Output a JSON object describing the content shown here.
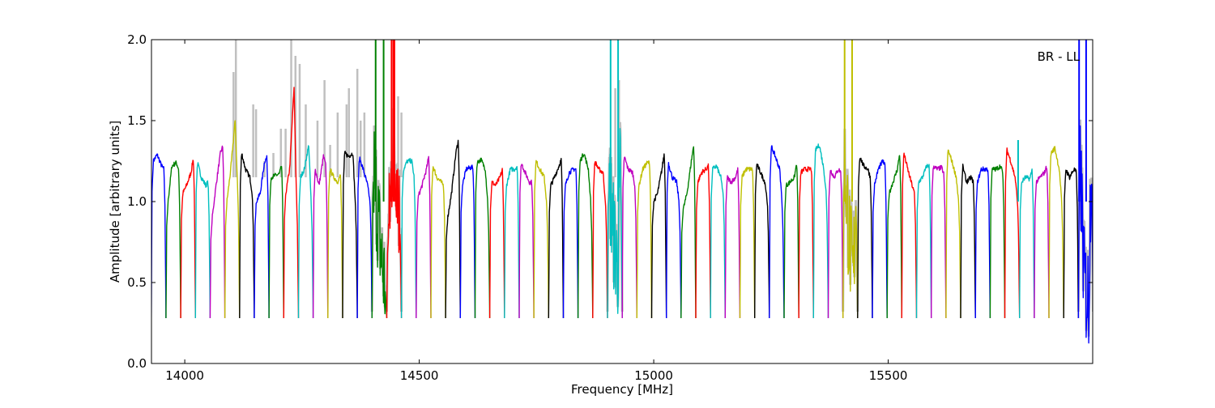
{
  "chart_data": {
    "type": "line",
    "title": "",
    "annotation": "BR - LL",
    "xlabel": "Frequency [MHz]",
    "ylabel": "Amplitude [arbitrary units]",
    "xlim": [
      13929,
      15936
    ],
    "ylim": [
      0.0,
      2.0
    ],
    "xticks": [
      14000,
      14500,
      15000,
      15500
    ],
    "xtick_labels": [
      "14000",
      "14500",
      "15000",
      "15500"
    ],
    "yticks": [
      0.0,
      0.5,
      1.0,
      1.5,
      2.0
    ],
    "ytick_labels": [
      "0.0",
      "0.5",
      "1.0",
      "1.5",
      "2.0"
    ],
    "grid": false,
    "colors": {
      "b": "#0000ff",
      "g": "#008000",
      "r": "#ff0000",
      "c": "#00bfbf",
      "m": "#bf00bf",
      "y": "#bfbf00",
      "k": "#000000",
      "grey": "#c0c0c0"
    },
    "color_cycle": [
      "b",
      "g",
      "r",
      "c",
      "m",
      "y",
      "k"
    ],
    "channel_first_start_mhz": 13928.6,
    "channel_width_mhz": 31.38,
    "channel_edge_level": 0.28,
    "channels": [
      {
        "v": [
          1.25,
          1.29,
          1.22,
          1.2
        ]
      },
      {
        "v": [
          1.0,
          1.22,
          1.24,
          1.2
        ]
      },
      {
        "v": [
          1.05,
          1.1,
          1.18,
          1.27
        ]
      },
      {
        "v": [
          1.24,
          1.15,
          1.1,
          1.12
        ]
      },
      {
        "v": [
          0.9,
          1.1,
          1.3,
          1.34
        ]
      },
      {
        "v": [
          1.0,
          1.2,
          1.5,
          1.1
        ]
      },
      {
        "v": [
          1.3,
          1.2,
          1.15,
          1.05
        ]
      },
      {
        "v": [
          1.0,
          1.05,
          1.25,
          1.27
        ]
      },
      {
        "v": [
          1.15,
          1.16,
          1.17,
          1.22
        ]
      },
      {
        "v": [
          1.05,
          1.2,
          1.7,
          1.05
        ]
      },
      {
        "v": [
          1.15,
          1.2,
          1.35,
          1.0
        ]
      },
      {
        "v": [
          1.2,
          1.1,
          1.28,
          1.22
        ]
      },
      {
        "v": [
          1.2,
          1.15,
          1.12,
          1.17
        ]
      },
      {
        "v": [
          1.3,
          1.28,
          1.3,
          1.0
        ]
      },
      {
        "v": [
          1.27,
          1.2,
          1.1,
          1.0
        ]
      },
      {
        "v": [
          1.2,
          0.9,
          0.6,
          0.5
        ],
        "noisy": true
      },
      {
        "v": [
          0.8,
          1.3,
          1.2,
          0.9
        ],
        "noisy": true
      },
      {
        "v": [
          1.2,
          1.25,
          1.25,
          1.15
        ]
      },
      {
        "v": [
          1.03,
          1.1,
          1.2,
          1.28
        ]
      },
      {
        "v": [
          1.22,
          1.15,
          1.12,
          1.1
        ]
      },
      {
        "v": [
          0.9,
          1.05,
          1.3,
          1.38
        ]
      },
      {
        "v": [
          1.1,
          1.2,
          1.21,
          1.21
        ]
      },
      {
        "v": [
          1.24,
          1.26,
          1.2,
          1.0
        ]
      },
      {
        "v": [
          1.12,
          1.1,
          1.15,
          1.2
        ]
      },
      {
        "v": [
          1.1,
          1.2,
          1.2,
          1.22
        ]
      },
      {
        "v": [
          1.24,
          1.18,
          1.12,
          1.12
        ]
      },
      {
        "v": [
          1.25,
          1.2,
          1.15,
          1.0
        ]
      },
      {
        "v": [
          1.1,
          1.15,
          1.22,
          1.26
        ]
      },
      {
        "v": [
          1.1,
          1.18,
          1.2,
          1.2
        ]
      },
      {
        "v": [
          1.25,
          1.3,
          1.2,
          1.0
        ]
      },
      {
        "v": [
          1.25,
          1.2,
          1.18,
          1.0
        ]
      },
      {
        "v": [
          1.1,
          0.8,
          0.6,
          1.2
        ],
        "noisy": true
      },
      {
        "v": [
          1.28,
          1.2,
          1.18,
          1.1
        ]
      },
      {
        "v": [
          1.1,
          1.2,
          1.24,
          1.24
        ]
      },
      {
        "v": [
          1.0,
          1.05,
          1.2,
          1.3
        ]
      },
      {
        "v": [
          1.24,
          1.15,
          1.12,
          1.0
        ]
      },
      {
        "v": [
          0.95,
          1.05,
          1.25,
          1.35
        ]
      },
      {
        "v": [
          1.12,
          1.18,
          1.2,
          1.22
        ]
      },
      {
        "v": [
          1.2,
          1.22,
          1.15,
          1.05
        ]
      },
      {
        "v": [
          1.15,
          1.12,
          1.15,
          1.2
        ]
      },
      {
        "v": [
          1.15,
          1.2,
          1.2,
          1.2
        ]
      },
      {
        "v": [
          1.23,
          1.18,
          1.12,
          1.0
        ]
      },
      {
        "v": [
          1.34,
          1.28,
          1.2,
          1.0
        ]
      },
      {
        "v": [
          1.1,
          1.12,
          1.15,
          1.24
        ]
      },
      {
        "v": [
          1.18,
          1.2,
          1.2,
          1.2
        ]
      },
      {
        "v": [
          1.32,
          1.35,
          1.2,
          1.05
        ]
      },
      {
        "v": [
          1.2,
          1.15,
          1.2,
          1.18
        ]
      },
      {
        "v": [
          1.2,
          0.8,
          0.5,
          1.0
        ],
        "noisy": true
      },
      {
        "v": [
          1.28,
          1.22,
          1.2,
          1.15
        ]
      },
      {
        "v": [
          1.1,
          1.2,
          1.25,
          1.22
        ]
      },
      {
        "v": [
          1.05,
          1.12,
          1.2,
          1.3
        ]
      },
      {
        "v": [
          1.3,
          1.2,
          1.1,
          1.05
        ]
      },
      {
        "v": [
          1.12,
          1.15,
          1.22,
          1.22
        ]
      },
      {
        "v": [
          1.22,
          1.2,
          1.21,
          1.17
        ]
      },
      {
        "v": [
          1.32,
          1.25,
          1.15,
          1.0
        ]
      },
      {
        "v": [
          1.22,
          1.12,
          1.15,
          1.12
        ]
      },
      {
        "v": [
          1.12,
          1.2,
          1.2,
          1.2
        ]
      },
      {
        "v": [
          1.2,
          1.2,
          1.22,
          1.18
        ]
      },
      {
        "v": [
          1.32,
          1.25,
          1.15,
          1.0
        ]
      },
      {
        "v": [
          1.12,
          1.15,
          1.14,
          1.2
        ]
      },
      {
        "v": [
          1.12,
          1.15,
          1.18,
          1.22
        ]
      },
      {
        "v": [
          1.3,
          1.33,
          1.2,
          1.0
        ]
      },
      {
        "v": [
          1.2,
          1.15,
          1.2,
          1.18
        ]
      },
      {
        "v": [
          1.2,
          0.5,
          0.4,
          1.25
        ],
        "noisy": true
      }
    ],
    "spikes": [
      {
        "f": 14407,
        "a": 2.0,
        "c": "g"
      },
      {
        "f": 14424,
        "a": 2.0,
        "c": "g"
      },
      {
        "f": 14441,
        "a": 2.0,
        "c": "r"
      },
      {
        "f": 14445,
        "a": 2.0,
        "c": "r"
      },
      {
        "f": 14447,
        "a": 2.0,
        "c": "r"
      },
      {
        "f": 14908,
        "a": 2.0,
        "c": "c"
      },
      {
        "f": 14924,
        "a": 2.0,
        "c": "c"
      },
      {
        "f": 15407,
        "a": 2.0,
        "c": "y"
      },
      {
        "f": 15423,
        "a": 2.0,
        "c": "y"
      },
      {
        "f": 15777,
        "a": 1.38,
        "c": "c"
      },
      {
        "f": 15907,
        "a": 2.0,
        "c": "b"
      },
      {
        "f": 15922,
        "a": 2.0,
        "c": "b"
      }
    ],
    "grey_spikes": [
      [
        14104,
        1.8
      ],
      [
        14109,
        2.0
      ],
      [
        14146,
        1.6
      ],
      [
        14152,
        1.57
      ],
      [
        14170,
        1.25
      ],
      [
        14189,
        1.3
      ],
      [
        14205,
        1.45
      ],
      [
        14215,
        1.45
      ],
      [
        14227,
        2.0
      ],
      [
        14236,
        1.9
      ],
      [
        14245,
        1.85
      ],
      [
        14258,
        1.6
      ],
      [
        14283,
        1.5
      ],
      [
        14298,
        1.75
      ],
      [
        14310,
        1.35
      ],
      [
        14326,
        1.55
      ],
      [
        14345,
        1.6
      ],
      [
        14350,
        1.7
      ],
      [
        14368,
        1.82
      ],
      [
        14375,
        1.5
      ],
      [
        14383,
        1.55
      ],
      [
        14455,
        1.65
      ],
      [
        14462,
        1.55
      ],
      [
        14918,
        1.7
      ],
      [
        14926,
        1.75
      ]
    ]
  }
}
